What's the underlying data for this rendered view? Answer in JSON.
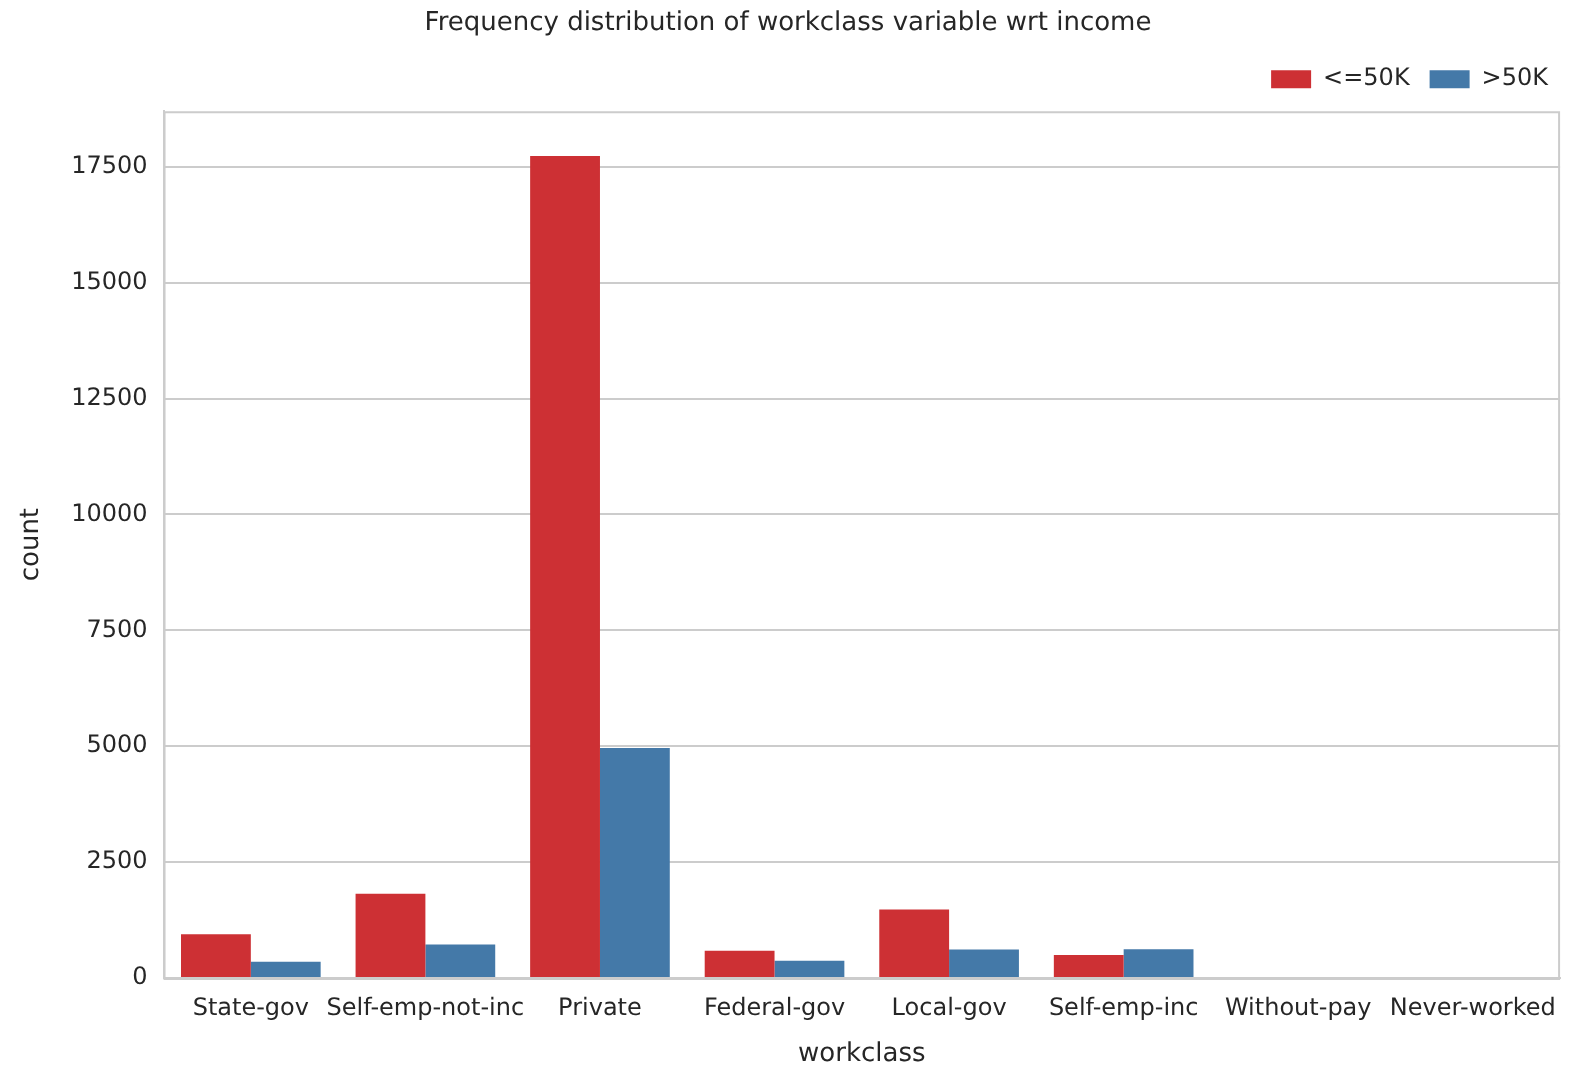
{
  "chart_data": {
    "type": "bar",
    "title": "Frequency distribution of workclass variable wrt income",
    "xlabel": "workclass",
    "ylabel": "count",
    "categories": [
      "State-gov",
      "Self-emp-not-inc",
      "Private",
      "Federal-gov",
      "Local-gov",
      "Self-emp-inc",
      "Without-pay",
      "Never-worked"
    ],
    "series": [
      {
        "name": "<=50K",
        "color": "#cd3034",
        "values": [
          945,
          1817,
          17733,
          589,
          1476,
          494,
          0,
          0
        ]
      },
      {
        "name": ">50K",
        "color": "#4479a8",
        "values": [
          353,
          724,
          4963,
          371,
          617,
          622,
          0,
          0
        ]
      }
    ],
    "ylim": [
      0,
      18700
    ],
    "yticks": [
      0,
      2500,
      5000,
      7500,
      10000,
      12500,
      15000,
      17500
    ],
    "grid": "y",
    "legend": "top right"
  }
}
